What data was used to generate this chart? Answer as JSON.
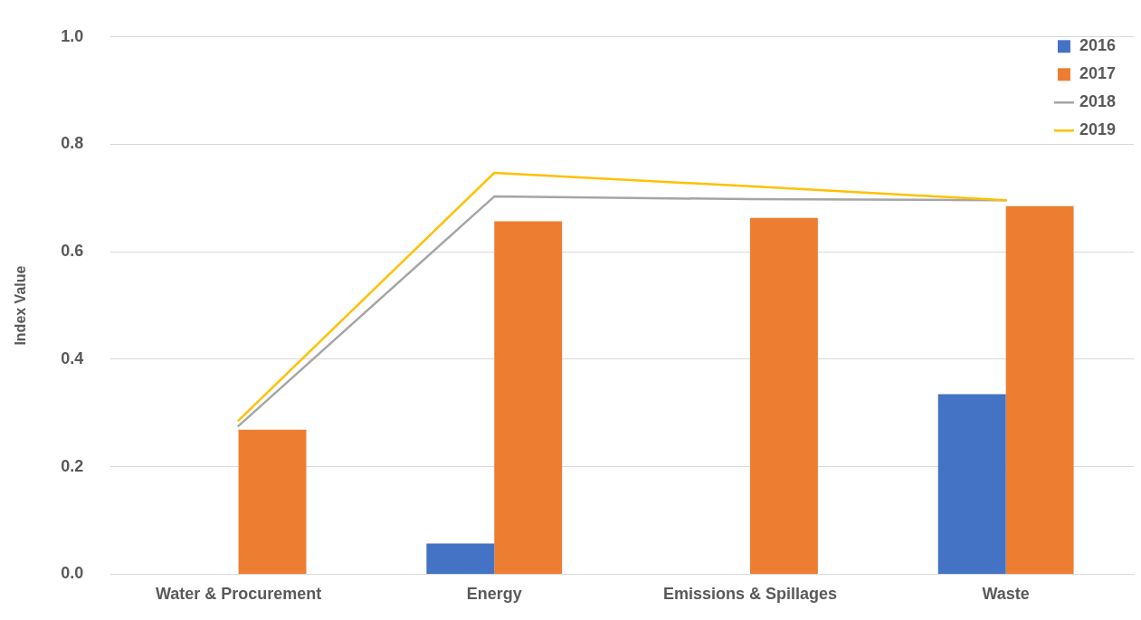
{
  "chart_data": {
    "type": "bar",
    "ylabel": "Index Value",
    "categories": [
      "Water & Procurement",
      "Energy",
      "Emissions & Spillages",
      "Waste"
    ],
    "series": [
      {
        "name": "2016",
        "color": "#4472c4",
        "values": [
          null,
          0.057,
          null,
          0.335
        ]
      },
      {
        "name": "2017",
        "color": "#ed7d31",
        "values": [
          0.269,
          0.657,
          0.663,
          0.685
        ]
      },
      {
        "name": "2018",
        "type": "line",
        "color": "#a5a5a5",
        "values": [
          0.276,
          0.703,
          0.698,
          0.696
        ]
      },
      {
        "name": "2019",
        "type": "line",
        "color": "#ffc000",
        "values": [
          0.286,
          0.747,
          0.722,
          0.696
        ]
      }
    ],
    "ylim": [
      0,
      1
    ],
    "yticks": [
      {
        "value": 0,
        "label": "0.0"
      },
      {
        "value": 0.2,
        "label": "0.2"
      },
      {
        "value": 0.4,
        "label": "0.4"
      },
      {
        "value": 0.6,
        "label": "0.6"
      },
      {
        "value": 0.8,
        "label": "0.8"
      },
      {
        "value": 1,
        "label": "1.0"
      }
    ],
    "grid": "y",
    "legend": "top right",
    "marker": "none",
    "line_style": "solid"
  }
}
